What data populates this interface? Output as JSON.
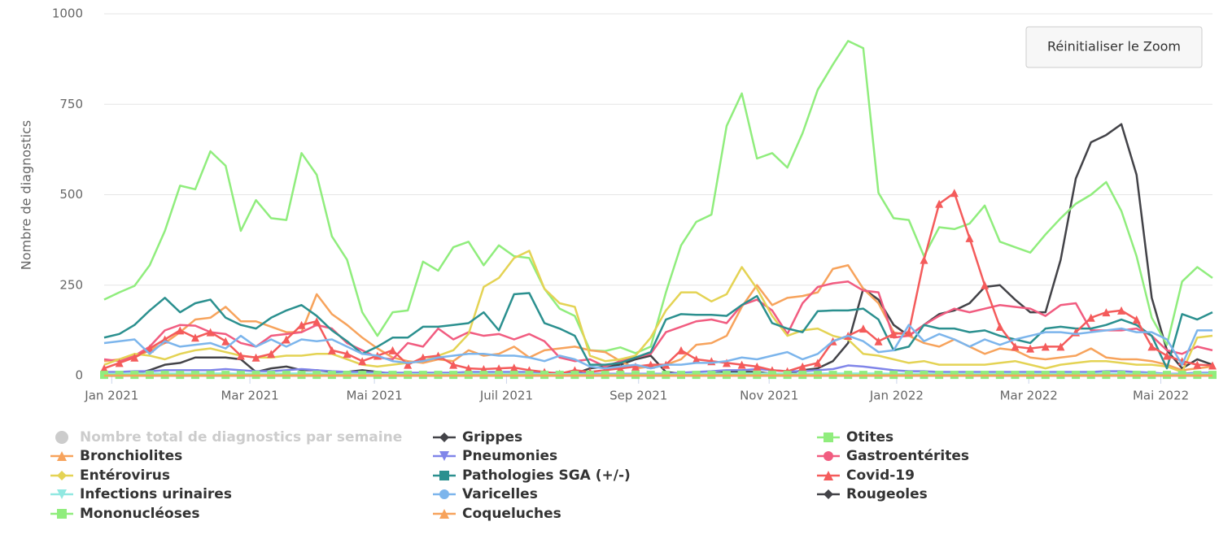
{
  "chart_data": {
    "type": "line",
    "y_axis_label": "Nombre de diagnostics",
    "button": "Réinitialiser le Zoom",
    "grid": true,
    "ylim": [
      0,
      1000
    ],
    "yticks": [
      0,
      250,
      500,
      750,
      1000
    ],
    "xlim": [
      0,
      73
    ],
    "xticks": [
      {
        "value": 0.5,
        "label": "Jan 2021"
      },
      {
        "value": 9.6,
        "label": "Mar 2021"
      },
      {
        "value": 17.8,
        "label": "Mai 2021"
      },
      {
        "value": 26.5,
        "label": "Juil 2021"
      },
      {
        "value": 35.2,
        "label": "Sep 2021"
      },
      {
        "value": 43.8,
        "label": "Nov 2021"
      },
      {
        "value": 52.2,
        "label": "Jan 2022"
      },
      {
        "value": 60.9,
        "label": "Mar 2022"
      },
      {
        "value": 69.6,
        "label": "Mai 2022"
      }
    ],
    "x": [
      0,
      1,
      2,
      3,
      4,
      5,
      6,
      7,
      8,
      9,
      10,
      11,
      12,
      13,
      14,
      15,
      16,
      17,
      18,
      19,
      20,
      21,
      22,
      23,
      24,
      25,
      26,
      27,
      28,
      29,
      30,
      31,
      32,
      33,
      34,
      35,
      36,
      37,
      38,
      39,
      40,
      41,
      42,
      43,
      44,
      45,
      46,
      47,
      48,
      49,
      50,
      51,
      52,
      53,
      54,
      55,
      56,
      57,
      58,
      59,
      60,
      61,
      62,
      63,
      64,
      65,
      66,
      67,
      68,
      69,
      70,
      71,
      72,
      73
    ],
    "series": [
      {
        "name": "Nombre total de diagnostics par semaine",
        "color": "#cccccc",
        "symbol": "circle",
        "visible": false
      },
      {
        "name": "Grippes",
        "color": "#434348",
        "symbol": "diamond",
        "markers": false,
        "values": [
          0,
          0,
          5,
          15,
          30,
          35,
          50,
          50,
          50,
          45,
          10,
          20,
          25,
          15,
          15,
          10,
          10,
          15,
          10,
          5,
          5,
          5,
          5,
          5,
          5,
          5,
          5,
          5,
          5,
          5,
          5,
          5,
          20,
          25,
          30,
          45,
          55,
          10,
          5,
          5,
          5,
          10,
          10,
          10,
          5,
          5,
          15,
          20,
          40,
          90,
          240,
          210,
          140,
          110,
          140,
          170,
          180,
          200,
          245,
          250,
          210,
          175,
          175,
          320,
          545,
          645,
          665,
          695,
          555,
          215,
          70,
          20,
          45,
          30
        ]
      },
      {
        "name": "Otites",
        "color": "#90ed7d",
        "symbol": "square",
        "markers": false,
        "values": [
          210,
          230,
          248,
          305,
          400,
          525,
          515,
          620,
          580,
          400,
          485,
          435,
          430,
          615,
          555,
          385,
          320,
          175,
          110,
          175,
          180,
          315,
          290,
          355,
          370,
          305,
          360,
          330,
          325,
          240,
          185,
          165,
          70,
          68,
          78,
          62,
          80,
          230,
          360,
          425,
          445,
          690,
          780,
          600,
          615,
          575,
          670,
          790,
          860,
          925,
          905,
          505,
          435,
          430,
          330,
          410,
          405,
          420,
          470,
          370,
          355,
          340,
          390,
          435,
          475,
          500,
          535,
          455,
          330,
          160,
          85,
          260,
          300,
          270
        ]
      },
      {
        "name": "Bronchiolites",
        "color": "#f7a35c",
        "symbol": "triangle",
        "markers": false,
        "values": [
          40,
          45,
          50,
          70,
          90,
          120,
          155,
          160,
          190,
          150,
          150,
          135,
          120,
          120,
          225,
          170,
          140,
          105,
          75,
          50,
          40,
          35,
          45,
          40,
          70,
          55,
          60,
          80,
          50,
          70,
          75,
          80,
          70,
          65,
          40,
          20,
          25,
          30,
          45,
          85,
          90,
          110,
          190,
          250,
          195,
          215,
          220,
          230,
          295,
          305,
          240,
          200,
          120,
          110,
          90,
          80,
          100,
          80,
          60,
          75,
          70,
          50,
          45,
          50,
          55,
          75,
          50,
          45,
          45,
          40,
          30,
          15,
          20,
          25
        ]
      },
      {
        "name": "Pneumonies",
        "color": "#8085e9",
        "symbol": "triangle-down",
        "markers": false,
        "values": [
          10,
          10,
          12,
          12,
          15,
          15,
          15,
          15,
          18,
          15,
          12,
          12,
          15,
          18,
          15,
          12,
          10,
          10,
          8,
          8,
          8,
          8,
          8,
          8,
          10,
          10,
          10,
          10,
          10,
          8,
          8,
          8,
          5,
          5,
          5,
          5,
          5,
          5,
          8,
          10,
          12,
          15,
          15,
          18,
          15,
          12,
          12,
          15,
          18,
          28,
          25,
          20,
          15,
          12,
          12,
          10,
          10,
          10,
          10,
          10,
          10,
          10,
          10,
          10,
          10,
          10,
          12,
          12,
          10,
          8,
          5,
          5,
          8,
          8
        ]
      },
      {
        "name": "Gastroentérites",
        "color": "#f15c80",
        "symbol": "circle",
        "markers": false,
        "values": [
          45,
          40,
          55,
          80,
          125,
          140,
          138,
          120,
          115,
          90,
          80,
          110,
          115,
          120,
          140,
          130,
          90,
          70,
          50,
          45,
          90,
          80,
          130,
          100,
          120,
          110,
          115,
          100,
          115,
          95,
          50,
          40,
          45,
          25,
          40,
          50,
          60,
          120,
          135,
          150,
          155,
          145,
          195,
          210,
          180,
          115,
          200,
          245,
          255,
          260,
          235,
          230,
          105,
          110,
          140,
          165,
          185,
          175,
          185,
          195,
          190,
          185,
          165,
          195,
          200,
          125,
          125,
          125,
          130,
          110,
          70,
          60,
          80,
          70
        ]
      },
      {
        "name": "Entérovirus",
        "color": "#e4d354",
        "symbol": "diamond",
        "markers": false,
        "values": [
          30,
          45,
          60,
          55,
          45,
          60,
          70,
          75,
          65,
          55,
          50,
          50,
          55,
          55,
          60,
          60,
          45,
          30,
          25,
          30,
          35,
          40,
          55,
          70,
          115,
          245,
          270,
          325,
          345,
          240,
          200,
          190,
          55,
          40,
          45,
          55,
          105,
          180,
          230,
          230,
          205,
          225,
          300,
          240,
          165,
          110,
          125,
          130,
          110,
          100,
          60,
          55,
          45,
          35,
          40,
          30,
          30,
          30,
          30,
          35,
          40,
          30,
          20,
          30,
          35,
          40,
          40,
          35,
          30,
          30,
          25,
          10,
          105,
          110
        ]
      },
      {
        "name": "Pathologies SGA (+/-)",
        "color": "#2b908f",
        "symbol": "square",
        "markers": false,
        "values": [
          105,
          115,
          140,
          180,
          215,
          175,
          200,
          210,
          160,
          140,
          130,
          160,
          180,
          195,
          165,
          125,
          95,
          60,
          80,
          105,
          105,
          135,
          135,
          140,
          145,
          175,
          125,
          225,
          228,
          145,
          130,
          110,
          30,
          30,
          35,
          50,
          65,
          155,
          170,
          168,
          168,
          165,
          195,
          220,
          145,
          130,
          120,
          178,
          180,
          180,
          185,
          155,
          70,
          80,
          140,
          130,
          130,
          120,
          125,
          110,
          100,
          90,
          130,
          135,
          130,
          130,
          140,
          155,
          140,
          110,
          20,
          170,
          155,
          175
        ]
      },
      {
        "name": "Covid-19",
        "color": "#f45b5b",
        "symbol": "triangle",
        "markers": true,
        "values": [
          20,
          35,
          50,
          75,
          100,
          125,
          105,
          120,
          95,
          55,
          50,
          60,
          100,
          140,
          150,
          70,
          60,
          40,
          55,
          70,
          30,
          50,
          55,
          30,
          20,
          18,
          20,
          22,
          15,
          10,
          5,
          15,
          10,
          15,
          20,
          25,
          30,
          30,
          70,
          45,
          40,
          35,
          30,
          25,
          15,
          12,
          25,
          35,
          95,
          110,
          130,
          95,
          115,
          120,
          320,
          475,
          505,
          380,
          250,
          135,
          80,
          75,
          80,
          80,
          120,
          160,
          175,
          180,
          155,
          80,
          55,
          40,
          30,
          28
        ]
      },
      {
        "name": "Infections urinaires",
        "color": "#91e8e1",
        "symbol": "triangle-down",
        "markers": false,
        "values": [
          5,
          5,
          6,
          6,
          6,
          6,
          6,
          6,
          6,
          5,
          5,
          5,
          6,
          6,
          6,
          5,
          5,
          5,
          4,
          4,
          4,
          4,
          4,
          4,
          5,
          5,
          5,
          5,
          5,
          4,
          4,
          4,
          3,
          3,
          3,
          3,
          3,
          3,
          4,
          5,
          5,
          6,
          6,
          6,
          6,
          5,
          5,
          6,
          6,
          6,
          6,
          6,
          5,
          5,
          5,
          5,
          5,
          5,
          5,
          5,
          5,
          5,
          5,
          5,
          5,
          5,
          5,
          5,
          5,
          5,
          4,
          3,
          5,
          5
        ]
      },
      {
        "name": "Varicelles",
        "color": "#7cb5ec",
        "symbol": "circle",
        "markers": false,
        "values": [
          90,
          95,
          100,
          60,
          95,
          80,
          85,
          90,
          75,
          110,
          80,
          100,
          80,
          100,
          95,
          100,
          80,
          60,
          55,
          40,
          35,
          40,
          50,
          55,
          60,
          60,
          55,
          55,
          50,
          40,
          55,
          45,
          25,
          20,
          25,
          30,
          20,
          30,
          30,
          35,
          35,
          40,
          50,
          45,
          55,
          65,
          45,
          60,
          95,
          110,
          95,
          65,
          70,
          140,
          95,
          115,
          100,
          80,
          100,
          85,
          100,
          110,
          120,
          120,
          115,
          120,
          125,
          130,
          120,
          120,
          100,
          30,
          125,
          125
        ]
      },
      {
        "name": "Rougeoles",
        "color": "#434348",
        "symbol": "diamond",
        "markers": false,
        "values": [
          0,
          0,
          0,
          0,
          0,
          0,
          0,
          0,
          0,
          0,
          0,
          0,
          0,
          0,
          0,
          0,
          0,
          0,
          0,
          0,
          0,
          0,
          0,
          0,
          0,
          0,
          0,
          0,
          0,
          0,
          0,
          0,
          0,
          0,
          0,
          0,
          0,
          0,
          0,
          0,
          0,
          0,
          0,
          0,
          0,
          0,
          0,
          0,
          0,
          0,
          0,
          0,
          0,
          0,
          0,
          0,
          0,
          0,
          0,
          0,
          0,
          0,
          0,
          0,
          0,
          0,
          0,
          0,
          0,
          0,
          0,
          0,
          0,
          0
        ]
      },
      {
        "name": "Mononucléoses",
        "color": "#90ed7d",
        "symbol": "square",
        "markers": true,
        "values": [
          2,
          2,
          2,
          2,
          2,
          2,
          2,
          2,
          2,
          2,
          2,
          2,
          2,
          2,
          2,
          2,
          2,
          2,
          2,
          2,
          2,
          2,
          2,
          2,
          2,
          2,
          2,
          2,
          2,
          2,
          2,
          2,
          2,
          2,
          2,
          2,
          2,
          2,
          2,
          2,
          2,
          2,
          2,
          2,
          2,
          2,
          2,
          2,
          2,
          2,
          2,
          2,
          2,
          2,
          2,
          2,
          2,
          2,
          2,
          2,
          2,
          2,
          2,
          2,
          2,
          2,
          2,
          2,
          2,
          2,
          2,
          2,
          2,
          2
        ]
      },
      {
        "name": "Coqueluches",
        "color": "#f7a35c",
        "symbol": "triangle",
        "markers": false,
        "values": [
          0,
          0,
          0,
          0,
          0,
          0,
          0,
          0,
          0,
          0,
          0,
          0,
          0,
          0,
          0,
          0,
          0,
          0,
          0,
          0,
          0,
          0,
          0,
          0,
          0,
          0,
          0,
          0,
          0,
          0,
          0,
          0,
          0,
          0,
          0,
          0,
          0,
          0,
          0,
          0,
          0,
          0,
          0,
          0,
          0,
          0,
          0,
          0,
          0,
          0,
          0,
          0,
          0,
          0,
          0,
          0,
          0,
          0,
          0,
          0,
          0,
          0,
          0,
          0,
          0,
          0,
          0,
          0,
          0,
          0,
          0,
          0,
          0,
          0
        ]
      }
    ]
  }
}
